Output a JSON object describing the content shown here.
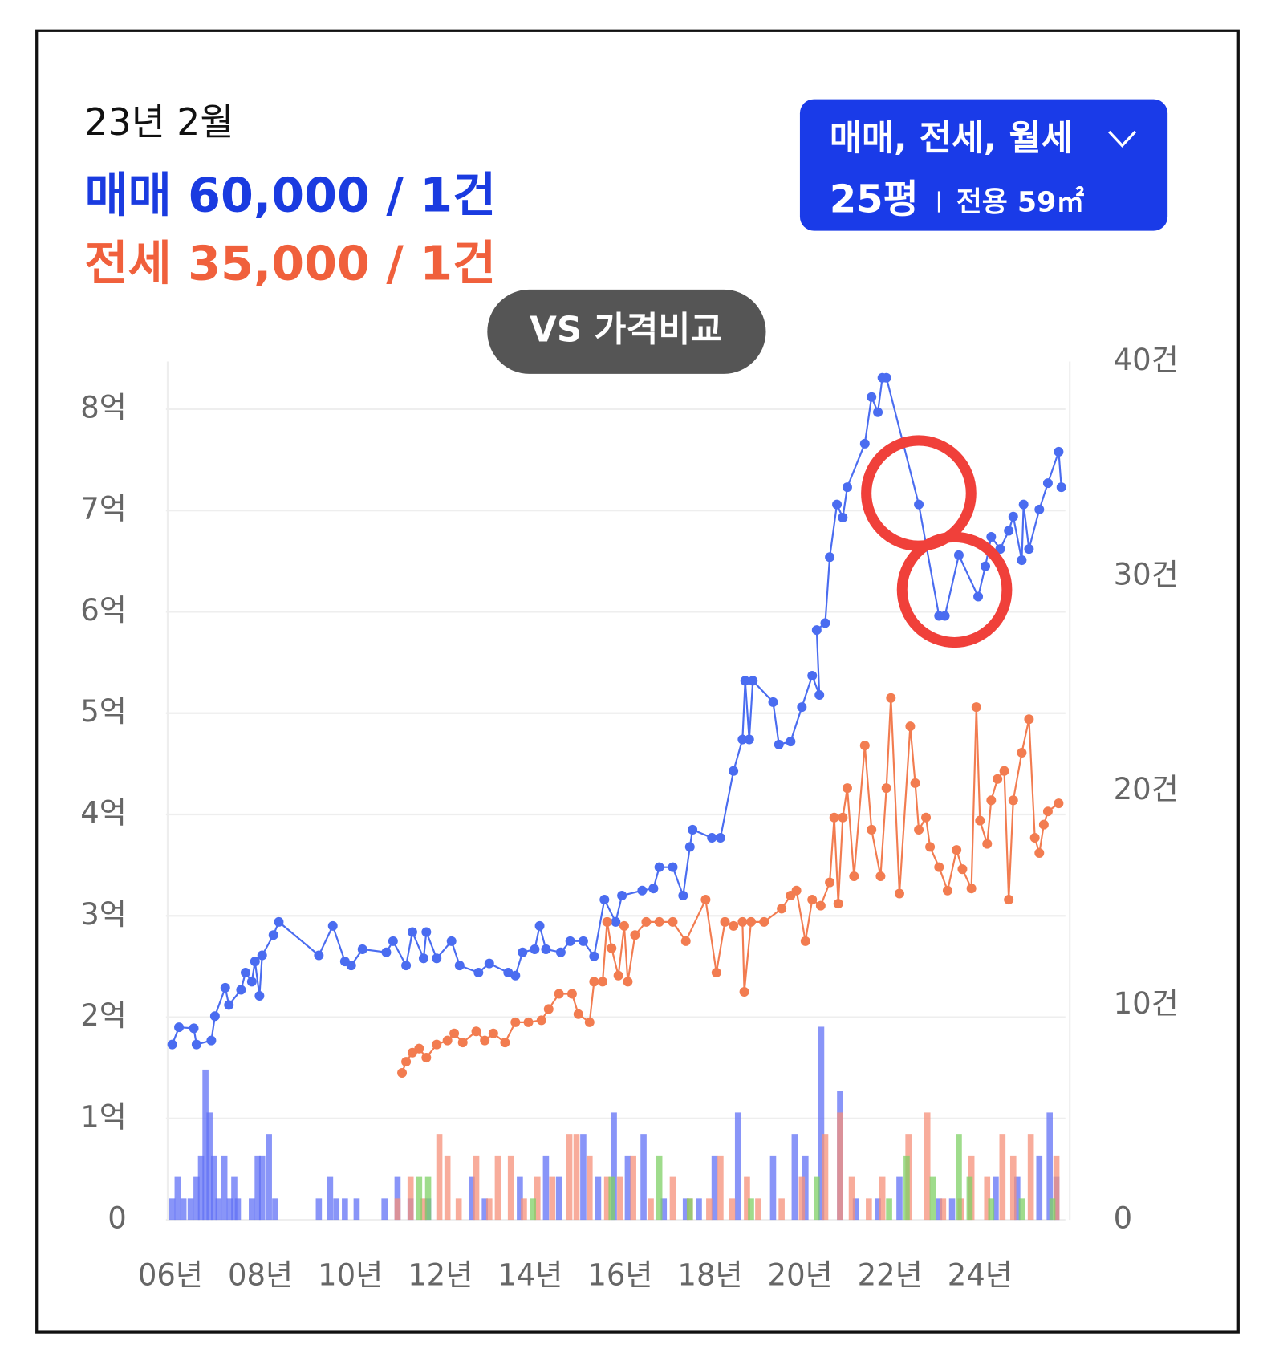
{
  "header": {
    "date": "23년 2월",
    "sale": "매매 60,000 / 1건",
    "jeonse": "전세 35,000 / 1건"
  },
  "selector": {
    "types": "매매, 전세, 월세",
    "size": "25평",
    "area": "전용 59㎡"
  },
  "compare_button": "VS 가격비교",
  "chart_data": {
    "type": "combo",
    "grid": true,
    "xlim": [
      2005.9,
      2025.9
    ],
    "xticks": [
      {
        "value": 2006,
        "label": "06년"
      },
      {
        "value": 2008,
        "label": "08년"
      },
      {
        "value": 2010,
        "label": "10년"
      },
      {
        "value": 2012,
        "label": "12년"
      },
      {
        "value": 2014,
        "label": "14년"
      },
      {
        "value": 2016,
        "label": "16년"
      },
      {
        "value": 2018,
        "label": "18년"
      },
      {
        "value": 2020,
        "label": "20년"
      },
      {
        "value": 2022,
        "label": "22년"
      },
      {
        "value": 2024,
        "label": "24년"
      }
    ],
    "ylim": [
      0,
      8.47
    ],
    "yticks": [
      0,
      {
        "value": 1,
        "label": "1억"
      },
      {
        "value": 2,
        "label": "2억"
      },
      {
        "value": 3,
        "label": "3억"
      },
      {
        "value": 4,
        "label": "4억"
      },
      {
        "value": 5,
        "label": "5억"
      },
      {
        "value": 6,
        "label": "6억"
      },
      {
        "value": 7,
        "label": "7억"
      },
      {
        "value": 8,
        "label": "8억"
      }
    ],
    "y2lim": [
      0,
      40
    ],
    "y2ticks": [
      0,
      {
        "value": 10,
        "label": "10건"
      },
      {
        "value": 20,
        "label": "20건"
      },
      {
        "value": 30,
        "label": "30건"
      },
      {
        "value": 40,
        "label": "40건"
      }
    ],
    "series": [
      {
        "type": "bar",
        "axis": "y2",
        "color": "#6272f5",
        "x": [
          2006.04,
          2006.16,
          2006.29,
          2006.45,
          2006.58,
          2006.68,
          2006.78,
          2006.87,
          2006.97,
          2007.07,
          2007.2,
          2007.32,
          2007.42,
          2007.5,
          2007.81,
          2007.94,
          2008.04,
          2008.19,
          2008.33,
          2009.3,
          2009.55,
          2009.69,
          2009.88,
          2010.14,
          2010.76,
          2011.05,
          2011.34,
          2011.73,
          2012.7,
          2012.99,
          2013.77,
          2014.35,
          2014.64,
          2015.18,
          2015.51,
          2015.86,
          2016.17,
          2016.52,
          2016.97,
          2017.46,
          2017.75,
          2018.1,
          2018.62,
          2019.4,
          2019.88,
          2020.12,
          2020.47,
          2020.89,
          2021.24,
          2021.73,
          2022.21,
          2023.09,
          2023.38,
          2024.35,
          2024.83,
          2025.32,
          2025.55,
          2025.7
        ],
        "values": [
          1,
          2,
          1,
          1,
          2,
          3,
          7,
          5,
          3,
          1,
          3,
          1,
          2,
          1,
          1,
          3,
          3,
          4,
          1,
          1,
          2,
          1,
          1,
          1,
          1,
          2,
          1,
          1,
          2,
          1,
          2,
          3,
          2,
          4,
          2,
          5,
          3,
          4,
          1,
          1,
          1,
          3,
          5,
          3,
          4,
          3,
          9,
          6,
          1,
          1,
          2,
          1,
          1,
          2,
          2,
          3,
          5,
          2
        ]
      },
      {
        "type": "bar",
        "axis": "y2",
        "color": "#f5907a",
        "x": [
          2011.05,
          2011.34,
          2011.63,
          2011.98,
          2012.16,
          2012.41,
          2012.8,
          2013.09,
          2013.28,
          2013.57,
          2013.86,
          2014.16,
          2014.49,
          2014.87,
          2015.03,
          2015.32,
          2015.71,
          2016.0,
          2016.29,
          2016.68,
          2017.17,
          2017.55,
          2017.98,
          2018.23,
          2018.49,
          2018.82,
          2019.07,
          2019.59,
          2020.04,
          2020.56,
          2020.89,
          2021.15,
          2021.53,
          2021.83,
          2022.41,
          2022.83,
          2023.18,
          2023.57,
          2023.81,
          2024.16,
          2024.5,
          2024.74,
          2025.13,
          2025.7
        ],
        "values": [
          1,
          2,
          1,
          4,
          3,
          1,
          3,
          1,
          3,
          3,
          1,
          2,
          2,
          4,
          4,
          3,
          2,
          2,
          3,
          1,
          2,
          1,
          1,
          3,
          1,
          2,
          1,
          1,
          2,
          4,
          5,
          2,
          1,
          2,
          4,
          5,
          1,
          1,
          3,
          2,
          4,
          3,
          4,
          3
        ]
      },
      {
        "type": "bar",
        "axis": "y2",
        "color": "#7fd066",
        "x": [
          2011.53,
          2011.73,
          2014.06,
          2015.81,
          2016.87,
          2017.55,
          2018.91,
          2020.37,
          2021.98,
          2022.37,
          2022.95,
          2023.53,
          2023.77,
          2024.25,
          2024.93,
          2025.61
        ],
        "values": [
          2,
          2,
          1,
          2,
          3,
          1,
          1,
          2,
          1,
          3,
          2,
          4,
          2,
          1,
          1,
          1
        ]
      },
      {
        "type": "line",
        "axis": "y",
        "color": "#4a6cf0",
        "x": [
          2006.04,
          2006.19,
          2006.52,
          2006.58,
          2006.91,
          2006.99,
          2007.22,
          2007.3,
          2007.57,
          2007.67,
          2007.81,
          2007.88,
          2007.98,
          2008.04,
          2008.29,
          2008.41,
          2009.3,
          2009.61,
          2009.88,
          2010.02,
          2010.27,
          2010.8,
          2010.95,
          2011.24,
          2011.38,
          2011.63,
          2011.69,
          2011.92,
          2012.25,
          2012.43,
          2012.85,
          2013.09,
          2013.51,
          2013.67,
          2013.83,
          2014.1,
          2014.21,
          2014.35,
          2014.68,
          2014.89,
          2015.18,
          2015.42,
          2015.65,
          2015.9,
          2016.04,
          2016.49,
          2016.74,
          2016.87,
          2017.17,
          2017.4,
          2017.55,
          2017.61,
          2018.04,
          2018.23,
          2018.52,
          2018.72,
          2018.78,
          2018.87,
          2018.95,
          2019.4,
          2019.53,
          2019.79,
          2020.04,
          2020.27,
          2020.43,
          2020.37,
          2020.56,
          2020.66,
          2020.82,
          2020.95,
          2021.05,
          2021.44,
          2021.59,
          2021.73,
          2021.83,
          2021.92,
          2022.64,
          2023.09,
          2023.22,
          2023.53,
          2023.96,
          2024.12,
          2024.25,
          2024.45,
          2024.64,
          2024.74,
          2024.93,
          2024.97,
          2025.09,
          2025.32,
          2025.51,
          2025.75,
          2025.81
        ],
        "values": [
          1.73,
          1.9,
          1.89,
          1.73,
          1.77,
          2.01,
          2.29,
          2.12,
          2.27,
          2.44,
          2.35,
          2.55,
          2.21,
          2.61,
          2.81,
          2.94,
          2.61,
          2.9,
          2.55,
          2.51,
          2.67,
          2.64,
          2.75,
          2.51,
          2.84,
          2.58,
          2.84,
          2.58,
          2.75,
          2.51,
          2.44,
          2.53,
          2.44,
          2.41,
          2.64,
          2.67,
          2.9,
          2.67,
          2.64,
          2.75,
          2.75,
          2.6,
          3.16,
          2.94,
          3.2,
          3.25,
          3.27,
          3.48,
          3.48,
          3.2,
          3.68,
          3.85,
          3.77,
          3.77,
          4.43,
          4.74,
          5.32,
          4.74,
          5.32,
          5.11,
          4.69,
          4.72,
          5.06,
          5.37,
          5.18,
          5.82,
          5.89,
          6.54,
          7.06,
          6.93,
          7.23,
          7.66,
          8.12,
          7.97,
          8.31,
          8.31,
          7.06,
          5.96,
          5.96,
          6.56,
          6.15,
          6.45,
          6.74,
          6.62,
          6.8,
          6.94,
          6.51,
          7.06,
          6.62,
          7.01,
          7.27,
          7.58,
          7.23
        ]
      },
      {
        "type": "line",
        "axis": "y",
        "color": "#f27c50",
        "x": [
          2011.15,
          2011.24,
          2011.38,
          2011.53,
          2011.69,
          2011.92,
          2012.16,
          2012.31,
          2012.5,
          2012.8,
          2012.99,
          2013.18,
          2013.44,
          2013.67,
          2013.96,
          2014.25,
          2014.41,
          2014.64,
          2014.93,
          2015.07,
          2015.32,
          2015.42,
          2015.61,
          2015.71,
          2015.81,
          2015.96,
          2016.09,
          2016.17,
          2016.33,
          2016.58,
          2016.87,
          2017.17,
          2017.46,
          2017.9,
          2018.14,
          2018.33,
          2018.52,
          2018.72,
          2018.76,
          2018.91,
          2019.2,
          2019.59,
          2019.79,
          2019.92,
          2020.12,
          2020.27,
          2020.46,
          2020.66,
          2020.76,
          2020.85,
          2020.95,
          2021.05,
          2021.2,
          2021.44,
          2021.59,
          2021.79,
          2021.92,
          2022.02,
          2022.21,
          2022.45,
          2022.56,
          2022.64,
          2022.8,
          2022.89,
          2023.09,
          2023.28,
          2023.48,
          2023.61,
          2023.81,
          2023.92,
          2024.0,
          2024.16,
          2024.25,
          2024.39,
          2024.54,
          2024.64,
          2024.74,
          2024.93,
          2025.09,
          2025.22,
          2025.32,
          2025.42,
          2025.51,
          2025.75
        ],
        "values": [
          1.45,
          1.56,
          1.65,
          1.69,
          1.6,
          1.73,
          1.77,
          1.84,
          1.75,
          1.86,
          1.77,
          1.84,
          1.75,
          1.95,
          1.95,
          1.97,
          2.08,
          2.23,
          2.23,
          2.03,
          1.95,
          2.35,
          2.35,
          2.94,
          2.68,
          2.41,
          2.9,
          2.35,
          2.81,
          2.94,
          2.94,
          2.94,
          2.75,
          3.16,
          2.44,
          2.94,
          2.9,
          2.94,
          2.25,
          2.94,
          2.94,
          3.07,
          3.2,
          3.25,
          2.75,
          3.16,
          3.1,
          3.33,
          3.97,
          3.12,
          3.97,
          4.26,
          3.39,
          4.68,
          3.85,
          3.39,
          4.26,
          5.15,
          3.22,
          4.87,
          4.31,
          3.85,
          3.97,
          3.68,
          3.48,
          3.25,
          3.65,
          3.46,
          3.27,
          5.06,
          3.94,
          3.71,
          4.14,
          4.35,
          4.43,
          3.16,
          4.14,
          4.61,
          4.94,
          3.77,
          3.62,
          3.9,
          4.03,
          4.11
        ]
      }
    ]
  }
}
